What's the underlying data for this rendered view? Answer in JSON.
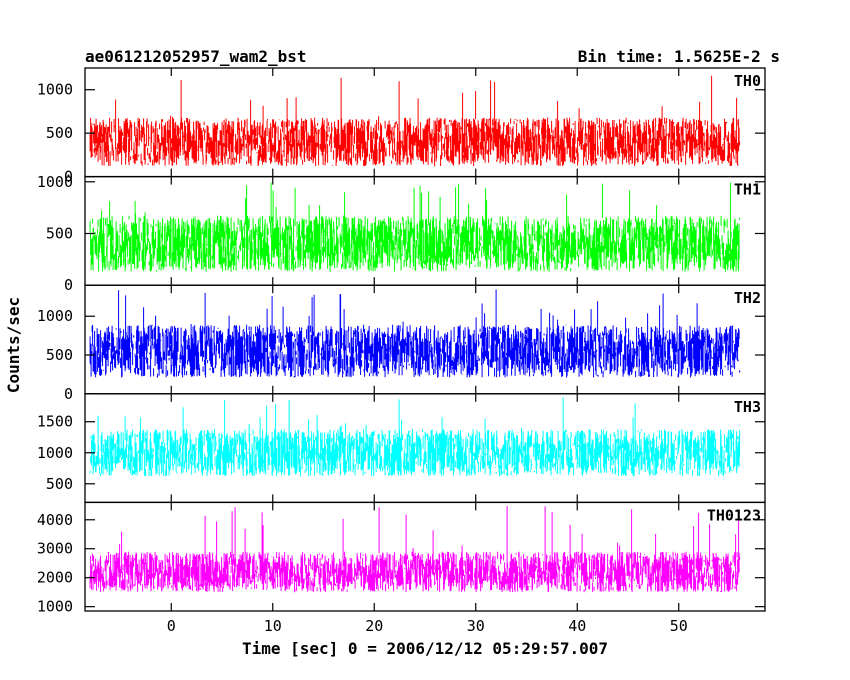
{
  "header": {
    "title": "ae061212052957_wam2_bst",
    "bin_time": "Bin time: 1.5625E-2 s"
  },
  "chart_data": {
    "type": "line",
    "title": "ae061212052957_wam2_bst",
    "subtitle": "Bin time: 1.5625E-2 s",
    "xlabel": "Time [sec] 0 = 2006/12/12 05:29:57.007",
    "ylabel": "Counts/sec",
    "xlim": [
      -8.5,
      58.5
    ],
    "x_data_range": [
      -8.0,
      56.0
    ],
    "x_ticks": [
      0,
      10,
      20,
      30,
      40,
      50
    ],
    "grid": false,
    "panels": [
      {
        "name": "TH0",
        "color": "#ff0000",
        "ylim": [
          0,
          1250
        ],
        "y_ticks": [
          0,
          500,
          1000
        ],
        "mean": 400,
        "noise": 280,
        "peak": 1200
      },
      {
        "name": "TH1",
        "color": "#00ff00",
        "ylim": [
          0,
          1050
        ],
        "y_ticks": [
          0,
          500,
          1000
        ],
        "mean": 400,
        "noise": 270,
        "peak": 1000
      },
      {
        "name": "TH2",
        "color": "#0000ff",
        "ylim": [
          0,
          1400
        ],
        "y_ticks": [
          0,
          500,
          1000
        ],
        "mean": 550,
        "noise": 340,
        "peak": 1350
      },
      {
        "name": "TH3",
        "color": "#00ffff",
        "ylim": [
          200,
          1950
        ],
        "y_ticks": [
          500,
          1000,
          1500
        ],
        "mean": 1000,
        "noise": 380,
        "peak": 1950
      },
      {
        "name": "TH0123",
        "color": "#ff00ff",
        "ylim": [
          850,
          4600
        ],
        "y_ticks": [
          1000,
          2000,
          3000,
          4000
        ],
        "mean": 2200,
        "noise": 700,
        "peak": 4500
      }
    ]
  }
}
